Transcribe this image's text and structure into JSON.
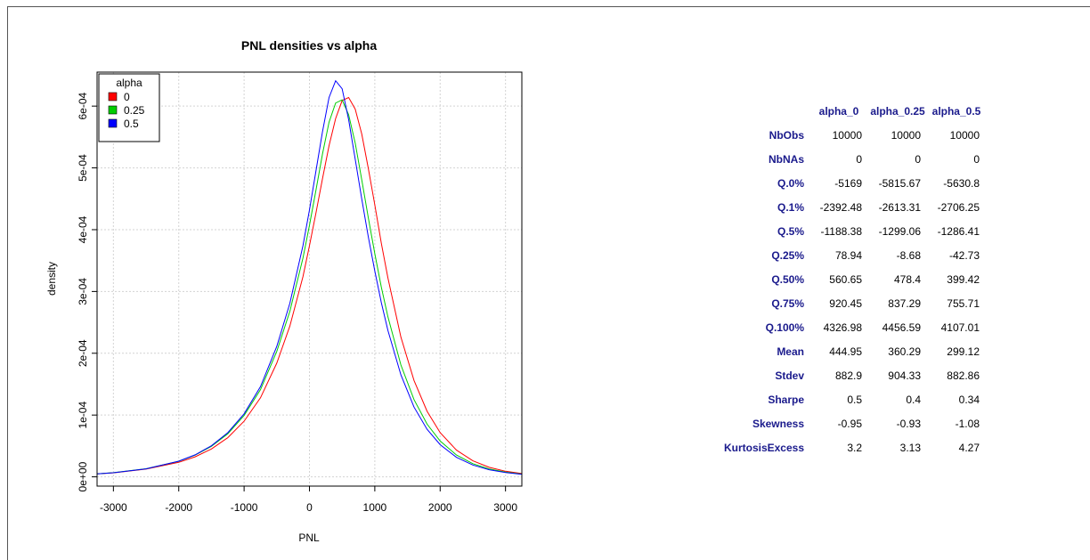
{
  "chart_data": {
    "type": "line",
    "title": "PNL densities vs alpha",
    "xlabel": "PNL",
    "ylabel": "density",
    "xlim": [
      -3250,
      3250
    ],
    "ylim": [
      -1.5e-05,
      0.000655
    ],
    "xticks": [
      -3000,
      -2000,
      -1000,
      0,
      1000,
      2000,
      3000
    ],
    "xtick_labels": [
      "-3000",
      "-2000",
      "-1000",
      "0",
      "1000",
      "2000",
      "3000"
    ],
    "yticks": [
      0,
      0.0001,
      0.0002,
      0.0003,
      0.0004,
      0.0005,
      0.0006
    ],
    "ytick_labels": [
      "0e+00",
      "1e-04",
      "2e-04",
      "3e-04",
      "4e-04",
      "5e-04",
      "6e-04"
    ],
    "grid": true,
    "legend": {
      "title": "alpha",
      "position": "top-left"
    },
    "x": [
      -3250,
      -3000,
      -2500,
      -2000,
      -1750,
      -1500,
      -1250,
      -1000,
      -750,
      -500,
      -300,
      -100,
      0,
      100,
      200,
      300,
      400,
      500,
      600,
      700,
      800,
      900,
      1000,
      1100,
      1200,
      1400,
      1600,
      1800,
      2000,
      2250,
      2500,
      2750,
      3000,
      3250
    ],
    "series": [
      {
        "name": "0",
        "color": "#ff0000",
        "values": [
          4.7e-06,
          6.4e-06,
          1.25e-05,
          2.35e-05,
          3.24e-05,
          4.51e-05,
          6.34e-05,
          9e-05,
          0.000128,
          0.000184,
          0.000244,
          0.000324,
          0.000374,
          0.000427,
          0.000483,
          0.000536,
          0.00058,
          0.000609,
          0.000614,
          0.000595,
          0.000555,
          0.0005,
          0.00044,
          0.000378,
          0.000322,
          0.000226,
          0.000156,
          0.000106,
          7.15e-05,
          4.32e-05,
          2.59e-05,
          1.54e-05,
          9.1e-06,
          5.3e-06
        ]
      },
      {
        "name": "0.25",
        "color": "#00cd00",
        "values": [
          4.9e-06,
          6.7e-06,
          1.31e-05,
          2.52e-05,
          3.52e-05,
          4.94e-05,
          6.97e-05,
          9.92e-05,
          0.000141,
          0.000203,
          0.000268,
          0.000354,
          0.000407,
          0.000464,
          0.000523,
          0.000574,
          0.000605,
          0.00061,
          0.000586,
          0.00054,
          0.000481,
          0.00042,
          0.000361,
          0.000307,
          0.000259,
          0.000181,
          0.000125,
          8.53e-05,
          5.79e-05,
          3.53e-05,
          2.13e-05,
          1.28e-05,
          7.6e-06,
          4.5e-06
        ]
      },
      {
        "name": "0.5",
        "color": "#0000ff",
        "values": [
          4.8e-06,
          6.6e-06,
          1.3e-05,
          2.53e-05,
          3.56e-05,
          5.03e-05,
          7.14e-05,
          0.000102,
          0.000146,
          0.000211,
          0.000281,
          0.000374,
          0.000432,
          0.000495,
          0.000559,
          0.000614,
          0.000641,
          0.000628,
          0.000578,
          0.000514,
          0.00045,
          0.000389,
          0.000333,
          0.000282,
          0.000237,
          0.000165,
          0.000113,
          7.69e-05,
          5.2e-05,
          3.16e-05,
          1.91e-05,
          1.15e-05,
          6.9e-06,
          4.1e-06
        ]
      }
    ]
  },
  "stats_table": {
    "columns": [
      "alpha_0",
      "alpha_0.25",
      "alpha_0.5"
    ],
    "rows": [
      {
        "label": "NbObs",
        "values": [
          "10000",
          "10000",
          "10000"
        ]
      },
      {
        "label": "NbNAs",
        "values": [
          "0",
          "0",
          "0"
        ]
      },
      {
        "label": "Q.0%",
        "values": [
          "-5169",
          "-5815.67",
          "-5630.8"
        ]
      },
      {
        "label": "Q.1%",
        "values": [
          "-2392.48",
          "-2613.31",
          "-2706.25"
        ]
      },
      {
        "label": "Q.5%",
        "values": [
          "-1188.38",
          "-1299.06",
          "-1286.41"
        ]
      },
      {
        "label": "Q.25%",
        "values": [
          "78.94",
          "-8.68",
          "-42.73"
        ]
      },
      {
        "label": "Q.50%",
        "values": [
          "560.65",
          "478.4",
          "399.42"
        ]
      },
      {
        "label": "Q.75%",
        "values": [
          "920.45",
          "837.29",
          "755.71"
        ]
      },
      {
        "label": "Q.100%",
        "values": [
          "4326.98",
          "4456.59",
          "4107.01"
        ]
      },
      {
        "label": "Mean",
        "values": [
          "444.95",
          "360.29",
          "299.12"
        ]
      },
      {
        "label": "Stdev",
        "values": [
          "882.9",
          "904.33",
          "882.86"
        ]
      },
      {
        "label": "Sharpe",
        "values": [
          "0.5",
          "0.4",
          "0.34"
        ]
      },
      {
        "label": "Skewness",
        "values": [
          "-0.95",
          "-0.93",
          "-1.08"
        ]
      },
      {
        "label": "KurtosisExcess",
        "values": [
          "3.2",
          "3.13",
          "4.27"
        ]
      }
    ],
    "header_color": "#1a1a8c"
  }
}
